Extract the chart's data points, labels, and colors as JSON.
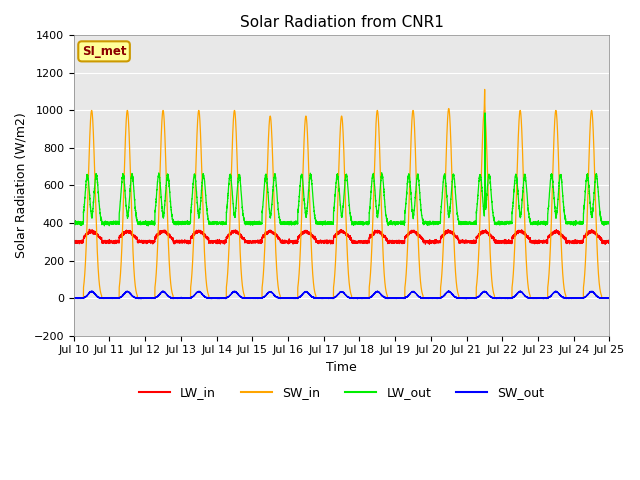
{
  "title": "Solar Radiation from CNR1",
  "xlabel": "Time",
  "ylabel": "Solar Radiation (W/m2)",
  "ylim": [
    -200,
    1400
  ],
  "x_tick_labels": [
    "Jul 10",
    "Jul 11",
    "Jul 12",
    "Jul 13",
    "Jul 14",
    "Jul 15",
    "Jul 16",
    "Jul 17",
    "Jul 18",
    "Jul 19",
    "Jul 20",
    "Jul 21",
    "Jul 22",
    "Jul 23",
    "Jul 24",
    "Jul 25"
  ],
  "annotation_label": "SI_met",
  "annotation_color": "#8B0000",
  "annotation_bg": "#FFFF99",
  "annotation_edge": "#CC9900",
  "line_colors": {
    "LW_in": "#FF0000",
    "SW_in": "#FFA500",
    "LW_out": "#00EE00",
    "SW_out": "#0000FF"
  },
  "legend_labels": [
    "LW_in",
    "SW_in",
    "LW_out",
    "SW_out"
  ],
  "bg_color": "#E8E8E8",
  "grid_color": "#FFFFFF",
  "num_days": 15,
  "SW_in_peak": 1000,
  "spike_day": 11,
  "spike_value": 1230,
  "LW_in_night": 300,
  "LW_in_bump": 55,
  "LW_out_night": 400,
  "LW_out_peak": 670,
  "SW_out_peak": 35
}
